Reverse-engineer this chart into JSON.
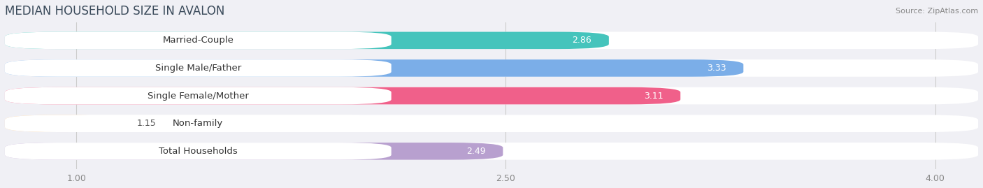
{
  "title": "MEDIAN HOUSEHOLD SIZE IN AVALON",
  "source": "Source: ZipAtlas.com",
  "categories": [
    "Married-Couple",
    "Single Male/Father",
    "Single Female/Mother",
    "Non-family",
    "Total Households"
  ],
  "values": [
    2.86,
    3.33,
    3.11,
    1.15,
    2.49
  ],
  "bar_colors": [
    "#45C4BC",
    "#7BAEE8",
    "#F0608A",
    "#F5C992",
    "#B8A0CF"
  ],
  "background_color": "#f0f0f5",
  "xlim_min": 0.75,
  "xlim_max": 4.15,
  "xticks": [
    1.0,
    2.5,
    4.0
  ],
  "title_fontsize": 12,
  "label_fontsize": 9.5,
  "value_fontsize": 9,
  "bar_height": 0.62,
  "fig_width": 14.06,
  "fig_height": 2.69,
  "title_color": "#3a4a5a",
  "source_color": "#888888",
  "value_label_color_inside": "#ffffff",
  "value_label_color_outside": "#555555",
  "label_pill_color": "#ffffff",
  "gap_color": "#e8e8f0"
}
